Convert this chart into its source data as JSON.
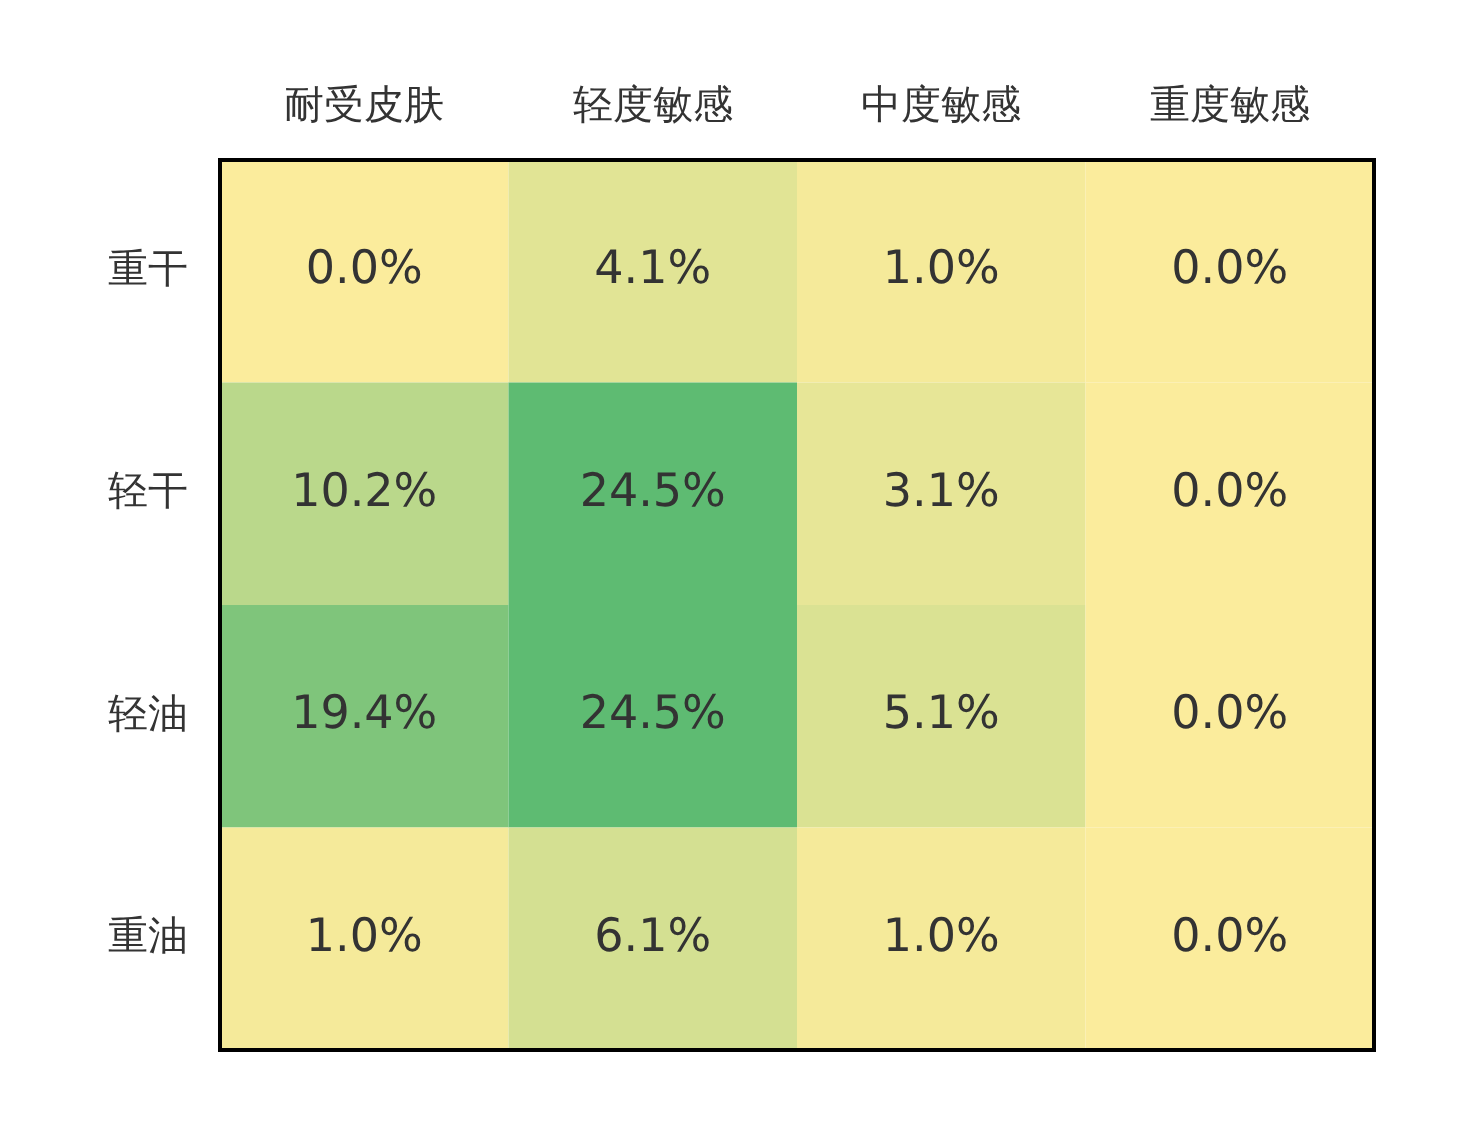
{
  "chart_data": {
    "type": "heatmap",
    "categories": [
      "耐受皮肤",
      "轻度敏感",
      "中度敏感",
      "重度敏感"
    ],
    "y_categories": [
      "重干",
      "轻干",
      "轻油",
      "重油"
    ],
    "cells": [
      [
        0.0,
        4.1,
        1.0,
        0.0
      ],
      [
        10.2,
        24.5,
        3.1,
        0.0
      ],
      [
        19.4,
        24.5,
        5.1,
        0.0
      ],
      [
        1.0,
        6.1,
        1.0,
        0.0
      ]
    ],
    "cell_labels": [
      [
        "0.0%",
        "4.1%",
        "1.0%",
        "0.0%"
      ],
      [
        "10.2%",
        "24.5%",
        "3.1%",
        "0.0%"
      ],
      [
        "19.4%",
        "24.5%",
        "5.1%",
        "0.0%"
      ],
      [
        "1.0%",
        "6.1%",
        "1.0%",
        "0.0%"
      ]
    ]
  }
}
